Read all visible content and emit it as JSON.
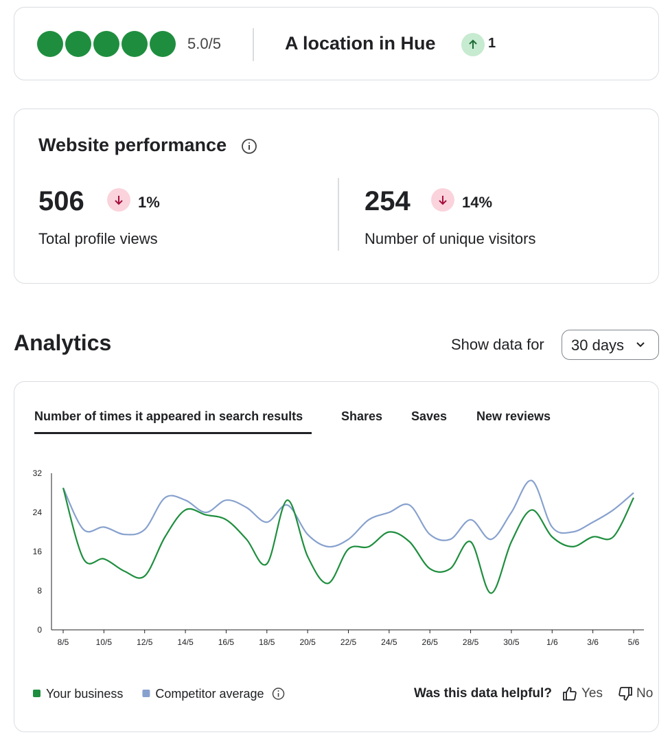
{
  "rating_card": {
    "rating": "5.0/5",
    "location": "A location in Hue",
    "change": "1"
  },
  "performance": {
    "title": "Website performance",
    "metrics": [
      {
        "value": "506",
        "change": "1%",
        "label": "Total profile views"
      },
      {
        "value": "254",
        "change": "14%",
        "label": "Number of unique visitors"
      }
    ]
  },
  "analytics": {
    "title": "Analytics",
    "range_label": "Show data for",
    "range": "30 days",
    "tabs": [
      "Number of times it appeared in search results",
      "Shares",
      "Saves",
      "New reviews"
    ],
    "feedback": {
      "question": "Was this data helpful?",
      "yes": "Yes",
      "no": "No"
    }
  },
  "chart_data": {
    "type": "line",
    "categories": [
      "8/5",
      null,
      "10/5",
      null,
      "12/5",
      null,
      "14/5",
      null,
      "16/5",
      null,
      "18/5",
      null,
      "20/5",
      null,
      "22/5",
      null,
      "24/5",
      null,
      "26/5",
      null,
      "28/5",
      null,
      "30/5",
      null,
      "1/6",
      null,
      "3/6",
      null,
      "5/6"
    ],
    "series": [
      {
        "name": "Your business",
        "color": "#1e8e3e",
        "values": [
          29,
          14.5,
          14.5,
          12,
          11,
          19,
          24.5,
          23.5,
          22.5,
          18.5,
          13.5,
          26.5,
          15,
          9.5,
          16.5,
          17,
          20,
          18,
          12.5,
          12.5,
          18,
          7.5,
          18,
          24.5,
          19,
          17,
          19,
          19,
          27
        ]
      },
      {
        "name": "Competitor average",
        "color": "#87a1ce",
        "values": [
          29,
          20.5,
          21,
          19.5,
          20.5,
          27,
          26.5,
          24,
          26.5,
          25,
          22,
          25.5,
          19.5,
          17,
          18.5,
          22.5,
          24,
          25.5,
          19.5,
          18.5,
          22.5,
          18.5,
          24,
          30.5,
          21,
          20,
          22,
          24.5,
          28
        ]
      }
    ],
    "ylim": [
      0,
      32
    ],
    "yticks": [
      0,
      8,
      16,
      24,
      32
    ],
    "grid": false,
    "legend": "bottom-left"
  }
}
